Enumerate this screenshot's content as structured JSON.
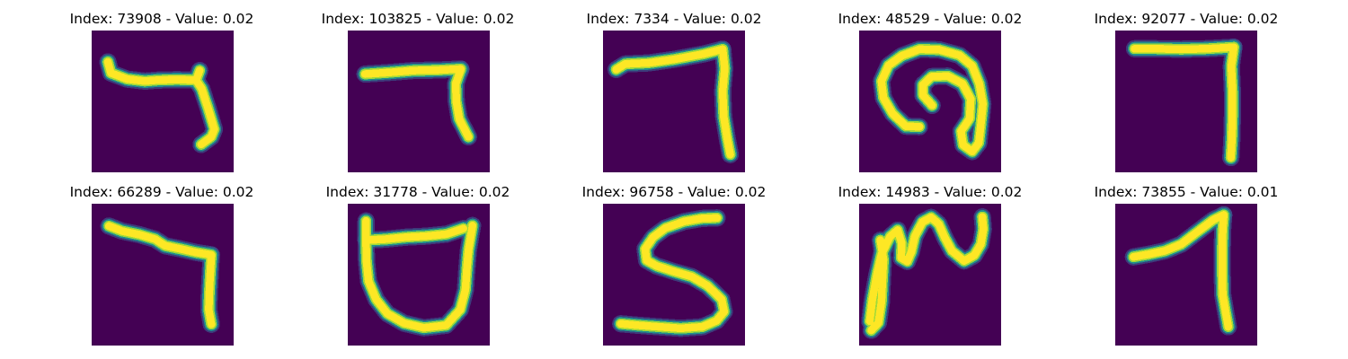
{
  "colors": {
    "background": "#440154",
    "stroke_core": "#fde725",
    "stroke_mid": "#a0da39",
    "stroke_edge": "#21918c",
    "stroke_outer": "#3b528b"
  },
  "panels": [
    {
      "index": "73908",
      "value": "0.02",
      "title": "Index: 73908 - Value: 0.02",
      "shape": "hook-seven"
    },
    {
      "index": "103825",
      "value": "0.02",
      "title": "Index: 103825 - Value: 0.02",
      "shape": "seven-short"
    },
    {
      "index": "7334",
      "value": "0.02",
      "title": "Index: 7334 - Value: 0.02",
      "shape": "seven-long"
    },
    {
      "index": "48529",
      "value": "0.02",
      "title": "Index: 48529 - Value: 0.02",
      "shape": "loop-curl"
    },
    {
      "index": "92077",
      "value": "0.02",
      "title": "Index: 92077 - Value: 0.02",
      "shape": "seven-straight"
    },
    {
      "index": "66289",
      "value": "0.02",
      "title": "Index: 66289 - Value: 0.02",
      "shape": "seven-slant"
    },
    {
      "index": "31778",
      "value": "0.02",
      "title": "Index: 31778 - Value: 0.02",
      "shape": "cup"
    },
    {
      "index": "96758",
      "value": "0.02",
      "title": "Index: 96758 - Value: 0.02",
      "shape": "five-s"
    },
    {
      "index": "14983",
      "value": "0.02",
      "title": "Index: 14983 - Value: 0.02",
      "shape": "wave"
    },
    {
      "index": "73855",
      "value": "0.01",
      "title": "Index: 73855 - Value: 0.01",
      "shape": "seven-curve"
    }
  ]
}
